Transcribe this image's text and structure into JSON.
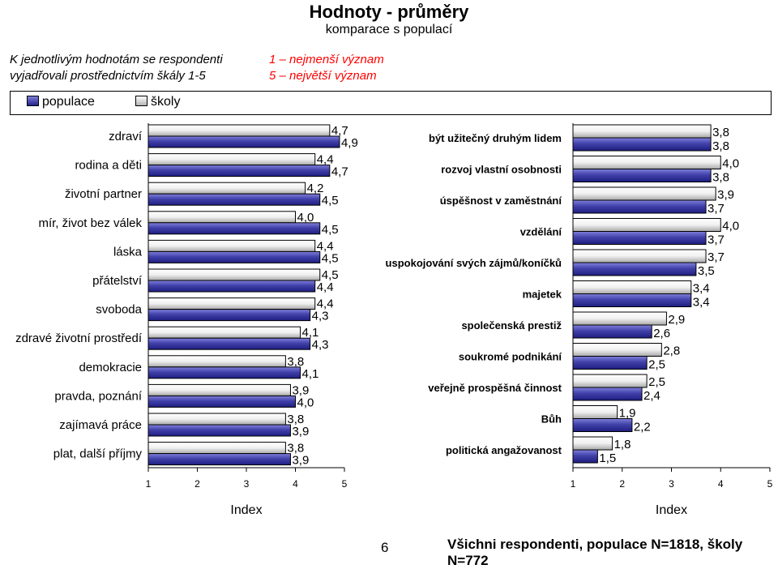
{
  "header": {
    "title": "Hodnoty - průměry",
    "subtitle": "komparace s populací",
    "intro_line1": "K jednotlivým hodnotám se respondenti",
    "intro_line2": "vyjadřovali prostřednictvím škály 1-5",
    "scale_line1": "1 – nejmenší význam",
    "scale_line2": "5 – největší význam"
  },
  "legend": {
    "populace": "populace",
    "skoly": "školy"
  },
  "colors": {
    "populace": "#23238a",
    "skoly": "#ffffff",
    "border": "#000000"
  },
  "chart_data": [
    {
      "type": "bar",
      "orientation": "horizontal",
      "xlabel": "Index",
      "xlim": [
        1,
        5
      ],
      "xticks": [
        "1",
        "2",
        "3",
        "4",
        "5"
      ],
      "grid": false,
      "categories": [
        "zdraví",
        "rodina a děti",
        "životní partner",
        "mír, život bez válek",
        "láska",
        "přátelství",
        "svoboda",
        "zdravé životní prostředí",
        "demokracie",
        "pravda, poznání",
        "zajímavá práce",
        "plat, další příjmy"
      ],
      "series": [
        {
          "name": "školy",
          "values": [
            4.7,
            4.4,
            4.2,
            4.0,
            4.4,
            4.5,
            4.4,
            4.1,
            3.8,
            3.9,
            3.8,
            3.8
          ],
          "labels": [
            "4,7",
            "4,4",
            "4,2",
            "4,0",
            "4,4",
            "4,5",
            "4,4",
            "4,1",
            "3,8",
            "3,9",
            "3,8",
            "3,8"
          ]
        },
        {
          "name": "populace",
          "values": [
            4.9,
            4.7,
            4.5,
            4.5,
            4.5,
            4.4,
            4.3,
            4.3,
            4.1,
            4.0,
            3.9,
            3.9
          ],
          "labels": [
            "4,9",
            "4,7",
            "4,5",
            "4,5",
            "4,5",
            "4,4",
            "4,3",
            "4,3",
            "4,1",
            "4,0",
            "3,9",
            "3,9"
          ]
        }
      ]
    },
    {
      "type": "bar",
      "orientation": "horizontal",
      "xlabel": "Index",
      "xlim": [
        1,
        5
      ],
      "xticks": [
        "1",
        "2",
        "3",
        "4",
        "5"
      ],
      "grid": false,
      "categories": [
        "být užitečný druhým lidem",
        "rozvoj vlastní osobnosti",
        "úspěšnost v zaměstnání",
        "vzdělání",
        "uspokojování svých zájmů/koníčků",
        "majetek",
        "společenská prestiž",
        "soukromé podnikání",
        "veřejně prospěšná činnost",
        "Bůh",
        "politická angažovanost"
      ],
      "series": [
        {
          "name": "školy",
          "values": [
            3.8,
            4.0,
            3.9,
            4.0,
            3.7,
            3.4,
            2.9,
            2.8,
            2.5,
            1.9,
            1.8
          ],
          "labels": [
            "3,8",
            "4,0",
            "3,9",
            "4,0",
            "3,7",
            "3,4",
            "2,9",
            "2,8",
            "2,5",
            "1,9",
            "1,8"
          ]
        },
        {
          "name": "populace",
          "values": [
            3.8,
            3.8,
            3.7,
            3.7,
            3.5,
            3.4,
            2.6,
            2.5,
            2.4,
            2.2,
            1.5
          ],
          "labels": [
            "3,8",
            "3,8",
            "3,7",
            "3,7",
            "3,5",
            "3,4",
            "2,6",
            "2,5",
            "2,4",
            "2,2",
            "1,5"
          ]
        }
      ]
    }
  ],
  "footer": {
    "page_number": "6",
    "note": "Všichni respondenti, populace N=1818, školy N=772"
  }
}
